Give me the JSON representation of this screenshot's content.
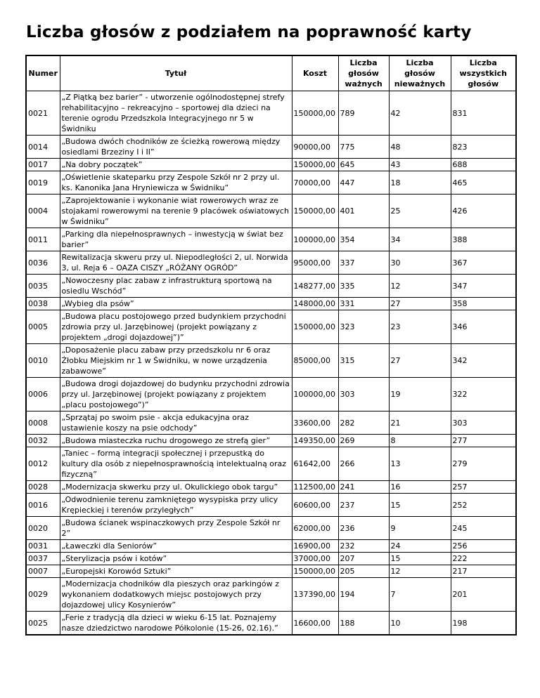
{
  "page": {
    "title": "Liczba głosów z podziałem na poprawność karty"
  },
  "table": {
    "columns": [
      "Numer",
      "Tytuł",
      "Koszt",
      "Liczba głosów ważnych",
      "Liczba głosów nieważnych",
      "Liczba wszystkich głosów"
    ],
    "rows": [
      {
        "numer": "0021",
        "tytul": "„Z Piątką bez barier” - utworzenie ogólnodostępnej strefy rehabilitacyjno – rekreacyjno – sportowej dla dzieci na terenie ogrodu Przedszkola Integracyjnego nr 5 w Świdniku",
        "koszt": "150000,00",
        "wazne": "789",
        "niewazne": "42",
        "wszystkie": "831"
      },
      {
        "numer": "0014",
        "tytul": "„Budowa dwóch chodników ze ścieżką rowerową między osiedlami Brzeziny I i II”",
        "koszt": "90000,00",
        "wazne": "775",
        "niewazne": "48",
        "wszystkie": "823"
      },
      {
        "numer": "0017",
        "tytul": "„Na dobry początek”",
        "koszt": "150000,00",
        "wazne": "645",
        "niewazne": "43",
        "wszystkie": "688"
      },
      {
        "numer": "0019",
        "tytul": "„Oświetlenie skateparku przy Zespole Szkół nr 2 przy ul. ks. Kanonika Jana Hryniewicza w Świdniku”",
        "koszt": "70000,00",
        "wazne": "447",
        "niewazne": "18",
        "wszystkie": "465"
      },
      {
        "numer": "0004",
        "tytul": "„Zaprojektowanie i wykonanie wiat rowerowych wraz ze stojakami rowerowymi na terenie 9 placówek oświatowych w Świdniku”",
        "koszt": "150000,00",
        "wazne": "401",
        "niewazne": "25",
        "wszystkie": "426"
      },
      {
        "numer": "0011",
        "tytul": "„Parking dla niepełnosprawnych – inwestycją w świat bez barier”",
        "koszt": "100000,00",
        "wazne": "354",
        "niewazne": "34",
        "wszystkie": "388"
      },
      {
        "numer": "0036",
        "tytul": "Rewitalizacja skweru przy ul. Niepodległości 2, ul. Norwida 3, ul. Reja 6 – OAZA CISZY „RÓŻANY OGRÓD”",
        "koszt": "95000,00",
        "wazne": "337",
        "niewazne": "30",
        "wszystkie": "367"
      },
      {
        "numer": "0035",
        "tytul": "„Nowoczesny plac zabaw z infrastrukturą sportową na osiedlu Wschód”",
        "koszt": "148277,00",
        "wazne": "335",
        "niewazne": "12",
        "wszystkie": "347"
      },
      {
        "numer": "0038",
        "tytul": "„Wybieg dla psów”",
        "koszt": "148000,00",
        "wazne": "331",
        "niewazne": "27",
        "wszystkie": "358"
      },
      {
        "numer": "0005",
        "tytul": "„Budowa placu postojowego przed budynkiem przychodni zdrowia przy ul. Jarzębinowej (projekt powiązany z projektem „drogi dojazdowej”)”",
        "koszt": "150000,00",
        "wazne": "323",
        "niewazne": "23",
        "wszystkie": "346"
      },
      {
        "numer": "0010",
        "tytul": "„Doposażenie placu zabaw przy przedszkolu nr 6 oraz Żłobku Miejskim nr 1 w Świdniku, w nowe urządzenia zabawowe”",
        "koszt": "85000,00",
        "wazne": "315",
        "niewazne": "27",
        "wszystkie": "342"
      },
      {
        "numer": "0006",
        "tytul": "„Budowa drogi dojazdowej do budynku przychodni zdrowia przy ul. Jarzębinowej (projekt powiązany z projektem „placu postojowego”)”",
        "koszt": "100000,00",
        "wazne": "303",
        "niewazne": "19",
        "wszystkie": "322"
      },
      {
        "numer": "0008",
        "tytul": "„Sprzątaj po swoim psie - akcja edukacyjna oraz ustawienie koszy na psie odchody”",
        "koszt": "33600,00",
        "wazne": "282",
        "niewazne": "21",
        "wszystkie": "303"
      },
      {
        "numer": "0032",
        "tytul": "„Budowa miasteczka ruchu drogowego ze strefą gier”",
        "koszt": "149350,00",
        "wazne": "269",
        "niewazne": "8",
        "wszystkie": "277"
      },
      {
        "numer": "0012",
        "tytul": "„Taniec – formą integracji społecznej i przepustką do kultury dla osób z niepełnosprawnością intelektualną oraz fizyczną”",
        "koszt": "61642,00",
        "wazne": "266",
        "niewazne": "13",
        "wszystkie": "279"
      },
      {
        "numer": "0028",
        "tytul": "„Modernizacja skwerku przy ul. Okulickiego obok targu”",
        "koszt": "112500,00",
        "wazne": "241",
        "niewazne": "16",
        "wszystkie": "257"
      },
      {
        "numer": "0016",
        "tytul": "„Odwodnienie terenu zamkniętego wysypiska przy ulicy Krępieckiej i terenów przyległych”",
        "koszt": "60600,00",
        "wazne": "237",
        "niewazne": "15",
        "wszystkie": "252"
      },
      {
        "numer": "0020",
        "tytul": "„Budowa ścianek wspinaczkowych przy Zespole Szkół nr 2”",
        "koszt": "62000,00",
        "wazne": "236",
        "niewazne": "9",
        "wszystkie": "245"
      },
      {
        "numer": "0031",
        "tytul": "„Ławeczki dla Seniorów”",
        "koszt": "16900,00",
        "wazne": "232",
        "niewazne": "24",
        "wszystkie": "256"
      },
      {
        "numer": "0037",
        "tytul": "„Sterylizacja psów i kotów”",
        "koszt": "37000,00",
        "wazne": "207",
        "niewazne": "15",
        "wszystkie": "222"
      },
      {
        "numer": "0007",
        "tytul": "„Europejski Korowód Sztuki”",
        "koszt": "150000,00",
        "wazne": "205",
        "niewazne": "12",
        "wszystkie": "217"
      },
      {
        "numer": "0029",
        "tytul": "„Modernizacja chodników dla pieszych oraz parkingów z wykonaniem dodatkowych miejsc postojowych przy dojazdowej ulicy Kosynierów”",
        "koszt": "137390,00",
        "wazne": "194",
        "niewazne": "7",
        "wszystkie": "201"
      },
      {
        "numer": "0025",
        "tytul": "„Ferie z tradycją dla dzieci w wieku 6-15 lat. Poznajemy nasze dziedzictwo narodowe Półkolonie (15-26, 02.16).”",
        "koszt": "16600,00",
        "wazne": "188",
        "niewazne": "10",
        "wszystkie": "198"
      }
    ]
  }
}
